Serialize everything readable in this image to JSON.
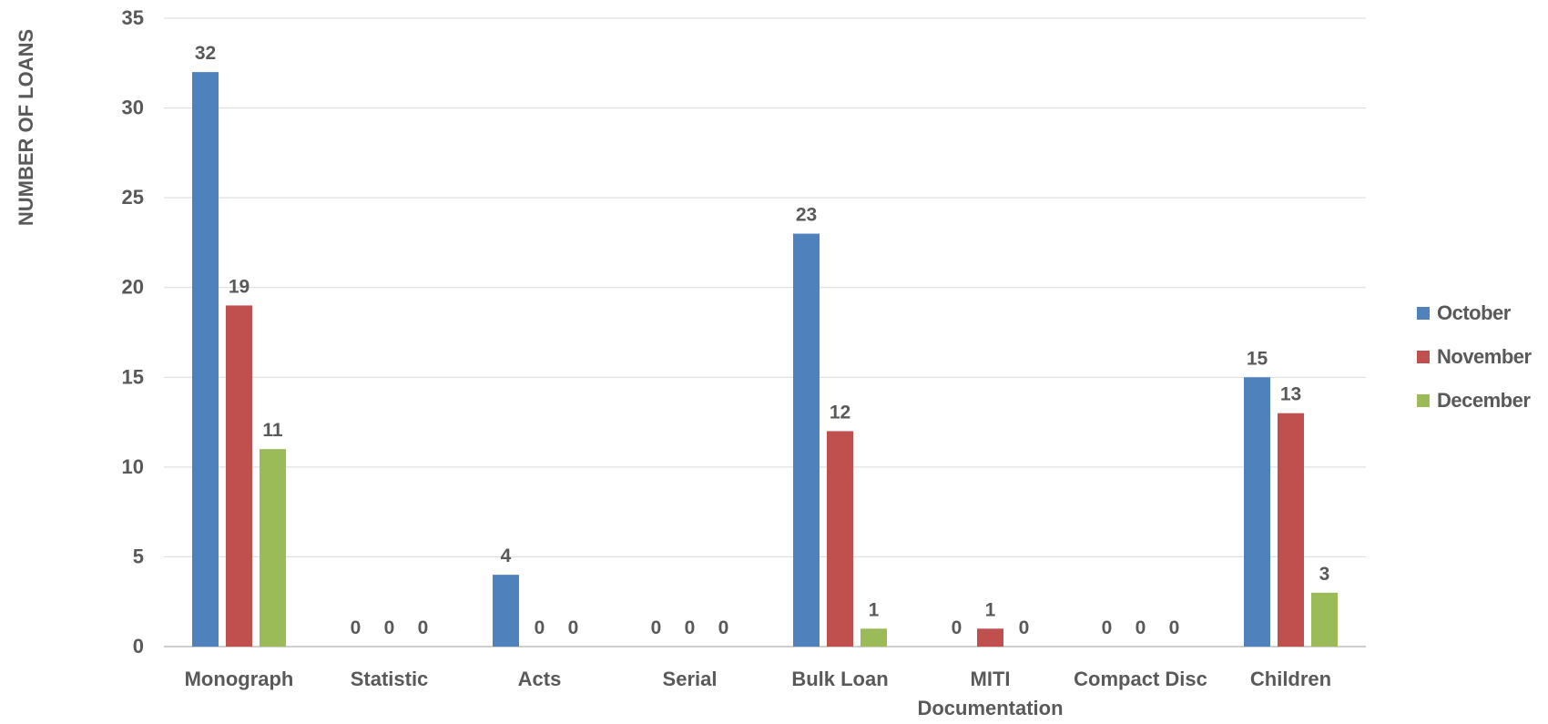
{
  "chart_data": {
    "type": "bar",
    "ylabel": "NUMBER OF LOANS",
    "xlabel": "",
    "ylim": [
      0,
      35
    ],
    "yticks": [
      0,
      5,
      10,
      15,
      20,
      25,
      30,
      35
    ],
    "grid": true,
    "legend_position": "right",
    "categories": [
      "Monograph",
      "Statistic",
      "Acts",
      "Serial",
      "Bulk Loan",
      "MITI Documentation",
      "Compact Disc",
      "Children"
    ],
    "category_label_lines": [
      [
        "Monograph"
      ],
      [
        "Statistic"
      ],
      [
        "Acts"
      ],
      [
        "Serial"
      ],
      [
        "Bulk Loan"
      ],
      [
        "MITI",
        "Documentation"
      ],
      [
        "Compact Disc"
      ],
      [
        "Children"
      ]
    ],
    "series": [
      {
        "name": "October",
        "color": "#4f81bd",
        "values": [
          32,
          0,
          4,
          0,
          23,
          0,
          0,
          15
        ]
      },
      {
        "name": "November",
        "color": "#c0504d",
        "values": [
          19,
          0,
          0,
          0,
          12,
          1,
          0,
          13
        ]
      },
      {
        "name": "December",
        "color": "#9bbb59",
        "values": [
          11,
          0,
          0,
          0,
          1,
          0,
          0,
          3
        ]
      }
    ],
    "data_labels": true
  }
}
